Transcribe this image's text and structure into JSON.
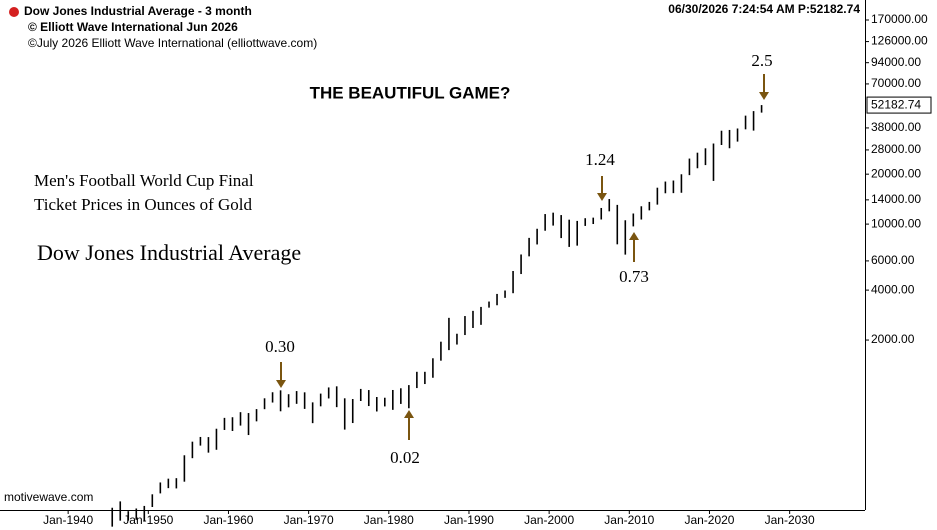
{
  "chart_data": {
    "type": "ohlc",
    "title": "Dow Jones Industrial Average - 3 month",
    "header_lines": [
      "© Elliott Wave International Jun 2026",
      "©July 2026   Elliott Wave International   (elliottwave.com)"
    ],
    "timestamp": "06/30/2026 7:24:54 AM  P:52182.74",
    "headline": "THE BEAUTIFUL GAME?",
    "subtitle_lines": [
      "Men's Football World Cup Final",
      "Ticket Prices in Ounces of Gold"
    ],
    "series_label": "Dow Jones Industrial Average",
    "source": "motivewave.com",
    "annotations": [
      "2.5",
      "1.24",
      "0.73",
      "0.30",
      "0.02"
    ],
    "log_scale": true,
    "color": "#000000",
    "annotation_color": "#7a5510",
    "x": [
      1945,
      1946,
      1947,
      1948,
      1949,
      1950,
      1951,
      1952,
      1953,
      1954,
      1955,
      1956,
      1957,
      1958,
      1959,
      1960,
      1961,
      1962,
      1963,
      1964,
      1965,
      1966,
      1967,
      1968,
      1969,
      1970,
      1971,
      1972,
      1973,
      1974,
      1975,
      1976,
      1977,
      1978,
      1979,
      1980,
      1981,
      1982,
      1983,
      1984,
      1985,
      1986,
      1987,
      1988,
      1989,
      1990,
      1991,
      1992,
      1993,
      1994,
      1995,
      1996,
      1997,
      1998,
      1999,
      2000,
      2001,
      2002,
      2003,
      2004,
      2005,
      2006,
      2007,
      2008,
      2009,
      2010,
      2011,
      2012,
      2013,
      2014,
      2015,
      2016,
      2017,
      2018,
      2019,
      2020,
      2021,
      2022,
      2023,
      2024,
      2025,
      2026
    ],
    "high": [
      195,
      213,
      186,
      193,
      200,
      235,
      277,
      292,
      294,
      404,
      488,
      521,
      520,
      584,
      679,
      685,
      735,
      726,
      767,
      891,
      969,
      995,
      943,
      985,
      968,
      842,
      951,
      1036,
      1052,
      891,
      882,
      1015,
      999,
      907,
      898,
      1000,
      1024,
      1070,
      1287,
      1287,
      1553,
      1955,
      2722,
      2183,
      2791,
      2999,
      3168,
      3413,
      3794,
      3978,
      5216,
      6560,
      8259,
      9374,
      11497,
      11722,
      11337,
      10635,
      10453,
      10854,
      10940,
      12510,
      14164,
      13058,
      10548,
      11585,
      12810,
      13610,
      16576,
      18053,
      18312,
      19974,
      24837,
      26951,
      28645,
      30606,
      36565,
      36952,
      37710,
      45073,
      48000,
      52182
    ],
    "low": [
      150,
      163,
      163,
      165,
      161,
      197,
      238,
      256,
      255,
      280,
      388,
      462,
      419,
      436,
      574,
      566,
      610,
      535,
      647,
      766,
      840,
      744,
      786,
      825,
      769,
      631,
      797,
      889,
      788,
      577,
      632,
      858,
      800,
      742,
      796,
      759,
      824,
      776,
      1027,
      1086,
      1185,
      1502,
      1739,
      1879,
      2144,
      2365,
      2470,
      3136,
      3242,
      3593,
      3832,
      5000,
      6391,
      7539,
      9120,
      9796,
      8236,
      7286,
      7416,
      9750,
      10012,
      10661,
      11939,
      7552,
      6547,
      9686,
      10655,
      12101,
      13104,
      15340,
      15370,
      15450,
      19732,
      21712,
      22686,
      18213,
      29982,
      28660,
      31429,
      37266,
      36611,
      47000
    ],
    "last_price": {
      "value": 52182.74,
      "label": "52182.74"
    },
    "xlim": [
      1931.5,
      2039.4
    ],
    "ylim": [
      189,
      224400
    ],
    "xticks": [
      {
        "value": 1940,
        "label": "Jan-1940"
      },
      {
        "value": 1950,
        "label": "Jan-1950"
      },
      {
        "value": 1960,
        "label": "Jan-1960"
      },
      {
        "value": 1970,
        "label": "Jan-1970"
      },
      {
        "value": 1980,
        "label": "Jan-1980"
      },
      {
        "value": 1990,
        "label": "Jan-1990"
      },
      {
        "value": 2000,
        "label": "Jan-2000"
      },
      {
        "value": 2010,
        "label": "Jan-2010"
      },
      {
        "value": 2020,
        "label": "Jan-2020"
      },
      {
        "value": 2030,
        "label": "Jan-2030"
      }
    ],
    "yticks": [
      {
        "value": 170000,
        "label": "170000.00"
      },
      {
        "value": 126000,
        "label": "126000.00"
      },
      {
        "value": 94000,
        "label": "94000.00"
      },
      {
        "value": 70000,
        "label": "70000.00"
      },
      {
        "value": 38000,
        "label": "38000.00"
      },
      {
        "value": 28000,
        "label": "28000.00"
      },
      {
        "value": 20000,
        "label": "20000.00"
      },
      {
        "value": 14000,
        "label": "14000.00"
      },
      {
        "value": 10000,
        "label": "10000.00"
      },
      {
        "value": 6000,
        "label": "6000.00"
      },
      {
        "value": 4000,
        "label": "4000.00"
      },
      {
        "value": 2000,
        "label": "2000.00"
      }
    ]
  }
}
